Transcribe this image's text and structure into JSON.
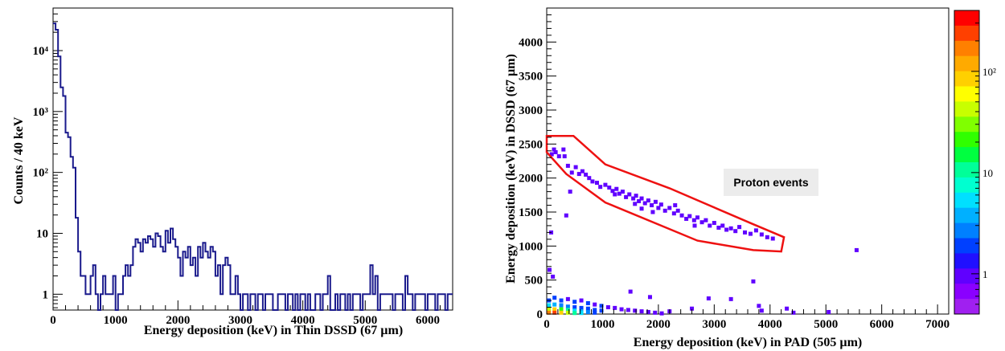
{
  "chart_data": [
    {
      "type": "histogram",
      "y_scale": "log",
      "xlabel": "Energy deposition (keV) in Thin DSSD (67  µm)",
      "ylabel": "Counts / 40 keV",
      "xlim": [
        0,
        6400
      ],
      "ylim": [
        0.55,
        50000
      ],
      "bin_width": 40,
      "x_ticks": [
        0,
        1000,
        2000,
        3000,
        4000,
        5000,
        6000
      ],
      "x_tick_labels": [
        "0",
        "1000",
        "2000",
        "3000",
        "4000",
        "5000",
        "6000"
      ],
      "y_ticks": [
        1,
        10,
        100,
        1000,
        10000
      ],
      "y_tick_labels": [
        "1",
        "10",
        "10²",
        "10³",
        "10⁴"
      ],
      "grid": false,
      "line_color": "#1a1a8c",
      "bins": [
        [
          0,
          28000
        ],
        [
          40,
          22000
        ],
        [
          80,
          8000
        ],
        [
          120,
          2500
        ],
        [
          160,
          1800
        ],
        [
          200,
          450
        ],
        [
          240,
          380
        ],
        [
          280,
          180
        ],
        [
          320,
          120
        ],
        [
          360,
          18
        ],
        [
          400,
          5
        ],
        [
          440,
          2
        ],
        [
          480,
          2
        ],
        [
          520,
          1
        ],
        [
          560,
          1
        ],
        [
          600,
          2
        ],
        [
          640,
          3
        ],
        [
          680,
          1
        ],
        [
          720,
          0
        ],
        [
          760,
          1
        ],
        [
          800,
          2
        ],
        [
          840,
          1
        ],
        [
          880,
          1
        ],
        [
          920,
          1
        ],
        [
          960,
          2
        ],
        [
          1000,
          0
        ],
        [
          1040,
          1
        ],
        [
          1080,
          1
        ],
        [
          1120,
          2
        ],
        [
          1160,
          3
        ],
        [
          1200,
          2
        ],
        [
          1240,
          3
        ],
        [
          1280,
          6
        ],
        [
          1320,
          8
        ],
        [
          1360,
          7
        ],
        [
          1400,
          5
        ],
        [
          1440,
          8
        ],
        [
          1480,
          7
        ],
        [
          1520,
          9
        ],
        [
          1560,
          8
        ],
        [
          1600,
          6
        ],
        [
          1640,
          10
        ],
        [
          1680,
          9
        ],
        [
          1720,
          6
        ],
        [
          1760,
          5
        ],
        [
          1800,
          11
        ],
        [
          1840,
          7
        ],
        [
          1880,
          12
        ],
        [
          1920,
          8
        ],
        [
          1960,
          6
        ],
        [
          2000,
          4
        ],
        [
          2040,
          2
        ],
        [
          2080,
          5
        ],
        [
          2120,
          4
        ],
        [
          2160,
          6
        ],
        [
          2200,
          3
        ],
        [
          2240,
          4
        ],
        [
          2280,
          2
        ],
        [
          2320,
          6
        ],
        [
          2360,
          4
        ],
        [
          2400,
          7
        ],
        [
          2440,
          5
        ],
        [
          2480,
          4
        ],
        [
          2520,
          6
        ],
        [
          2560,
          5
        ],
        [
          2600,
          2
        ],
        [
          2640,
          3
        ],
        [
          2680,
          1
        ],
        [
          2720,
          3
        ],
        [
          2760,
          4
        ],
        [
          2800,
          3
        ],
        [
          2840,
          1
        ],
        [
          2880,
          1
        ],
        [
          2920,
          2
        ],
        [
          2960,
          1
        ],
        [
          3000,
          0
        ],
        [
          3040,
          1
        ],
        [
          3080,
          1
        ],
        [
          3120,
          0
        ],
        [
          3160,
          1
        ],
        [
          3200,
          1
        ],
        [
          3240,
          0
        ],
        [
          3280,
          1
        ],
        [
          3320,
          1
        ],
        [
          3360,
          0
        ],
        [
          3400,
          1
        ],
        [
          3440,
          1
        ],
        [
          3480,
          1
        ],
        [
          3520,
          0
        ],
        [
          3560,
          0
        ],
        [
          3600,
          1
        ],
        [
          3640,
          1
        ],
        [
          3680,
          1
        ],
        [
          3720,
          0
        ],
        [
          3760,
          1
        ],
        [
          3800,
          1
        ],
        [
          3840,
          0
        ],
        [
          3880,
          1
        ],
        [
          3920,
          0
        ],
        [
          3960,
          1
        ],
        [
          4000,
          1
        ],
        [
          4040,
          0
        ],
        [
          4080,
          1
        ],
        [
          4120,
          0
        ],
        [
          4160,
          0
        ],
        [
          4200,
          1
        ],
        [
          4240,
          1
        ],
        [
          4280,
          0
        ],
        [
          4320,
          1
        ],
        [
          4360,
          1
        ],
        [
          4400,
          2
        ],
        [
          4440,
          0
        ],
        [
          4480,
          0
        ],
        [
          4520,
          1
        ],
        [
          4560,
          0
        ],
        [
          4600,
          1
        ],
        [
          4640,
          1
        ],
        [
          4680,
          0
        ],
        [
          4720,
          1
        ],
        [
          4760,
          0
        ],
        [
          4800,
          1
        ],
        [
          4840,
          1
        ],
        [
          4880,
          1
        ],
        [
          4920,
          0
        ],
        [
          4960,
          1
        ],
        [
          5000,
          1
        ],
        [
          5040,
          1
        ],
        [
          5080,
          3
        ],
        [
          5120,
          1
        ],
        [
          5160,
          2
        ],
        [
          5200,
          0
        ],
        [
          5240,
          1
        ],
        [
          5280,
          1
        ],
        [
          5320,
          1
        ],
        [
          5360,
          1
        ],
        [
          5400,
          1
        ],
        [
          5440,
          0
        ],
        [
          5480,
          1
        ],
        [
          5520,
          1
        ],
        [
          5560,
          1
        ],
        [
          5600,
          0
        ],
        [
          5640,
          2
        ],
        [
          5680,
          1
        ],
        [
          5720,
          1
        ],
        [
          5760,
          0
        ],
        [
          5800,
          1
        ],
        [
          5840,
          1
        ],
        [
          5880,
          1
        ],
        [
          5920,
          1
        ],
        [
          5960,
          0
        ],
        [
          6000,
          1
        ],
        [
          6040,
          1
        ],
        [
          6080,
          1
        ],
        [
          6120,
          0
        ],
        [
          6160,
          1
        ],
        [
          6200,
          1
        ],
        [
          6240,
          1
        ],
        [
          6280,
          0
        ],
        [
          6320,
          1
        ],
        [
          6360,
          1
        ]
      ]
    },
    {
      "type": "heatmap",
      "xlabel": "Energy deposition (keV) in PAD (505  µm)",
      "ylabel": "Energy deposition (keV) in DSSD (67  µm)",
      "xlim": [
        0,
        7200
      ],
      "ylim": [
        0,
        4500
      ],
      "x_ticks": [
        0,
        1000,
        2000,
        3000,
        4000,
        5000,
        6000,
        7000
      ],
      "x_tick_labels": [
        "0",
        "1000",
        "2000",
        "3000",
        "4000",
        "5000",
        "6000",
        "7000"
      ],
      "y_ticks": [
        0,
        500,
        1000,
        1500,
        2000,
        2500,
        3000,
        3500,
        4000
      ],
      "y_tick_labels": [
        "0",
        "500",
        "1000",
        "1500",
        "2000",
        "2500",
        "3000",
        "3500",
        "4000"
      ],
      "colorbar": {
        "scale": "log",
        "range": [
          0.4,
          400
        ],
        "tick_values": [
          1,
          10,
          100
        ],
        "tick_labels": [
          "1",
          "10",
          "10²"
        ],
        "colors": [
          "#ff0000",
          "#ff4000",
          "#ff8000",
          "#ffaa00",
          "#ffd000",
          "#ffff00",
          "#c8ff00",
          "#80ff00",
          "#30ff00",
          "#00ff40",
          "#00ff99",
          "#00ffd0",
          "#00e0ff",
          "#00b0ff",
          "#0080ff",
          "#0040ff",
          "#2010ff",
          "#6000ff",
          "#8a00ff",
          "#a020f0"
        ]
      },
      "annotation": "Proton events",
      "gate_color": "#ee1111",
      "gate_polygon": [
        [
          0,
          2620
        ],
        [
          480,
          2620
        ],
        [
          1050,
          2200
        ],
        [
          2200,
          1850
        ],
        [
          3700,
          1320
        ],
        [
          4250,
          1130
        ],
        [
          4200,
          920
        ],
        [
          3700,
          940
        ],
        [
          2700,
          1080
        ],
        [
          1050,
          1640
        ],
        [
          350,
          2060
        ],
        [
          0,
          2380
        ]
      ],
      "points": [
        [
          90,
          2350,
          1
        ],
        [
          160,
          2380,
          1
        ],
        [
          220,
          2320,
          1
        ],
        [
          300,
          2420,
          1
        ],
        [
          320,
          2320,
          1
        ],
        [
          130,
          2420,
          1
        ],
        [
          80,
          1200,
          1
        ],
        [
          380,
          2180,
          1
        ],
        [
          450,
          2080,
          1
        ],
        [
          520,
          2160,
          1
        ],
        [
          580,
          2060,
          1
        ],
        [
          640,
          2100,
          1
        ],
        [
          700,
          2050,
          1
        ],
        [
          760,
          2000,
          1
        ],
        [
          820,
          1950,
          1
        ],
        [
          900,
          1930,
          1
        ],
        [
          960,
          1870,
          1
        ],
        [
          1050,
          1900,
          1
        ],
        [
          1120,
          1860,
          1
        ],
        [
          1180,
          1810,
          1
        ],
        [
          1250,
          1840,
          1
        ],
        [
          1300,
          1770,
          1
        ],
        [
          1360,
          1800,
          1
        ],
        [
          1420,
          1720,
          1
        ],
        [
          1480,
          1760,
          1
        ],
        [
          1550,
          1700,
          1
        ],
        [
          1600,
          1740,
          1
        ],
        [
          1650,
          1660,
          1
        ],
        [
          1700,
          1700,
          1
        ],
        [
          1760,
          1630,
          1
        ],
        [
          1820,
          1670,
          1
        ],
        [
          1880,
          1600,
          1
        ],
        [
          1950,
          1650,
          1
        ],
        [
          2000,
          1560,
          1
        ],
        [
          2050,
          1610,
          1
        ],
        [
          2120,
          1520,
          1
        ],
        [
          2200,
          1560,
          1
        ],
        [
          2280,
          1480,
          1
        ],
        [
          2350,
          1520,
          1
        ],
        [
          2420,
          1450,
          1
        ],
        [
          2500,
          1400,
          1
        ],
        [
          2560,
          1440,
          1
        ],
        [
          2640,
          1380,
          1
        ],
        [
          2700,
          1420,
          1
        ],
        [
          2780,
          1350,
          1
        ],
        [
          2850,
          1380,
          1
        ],
        [
          2920,
          1300,
          1
        ],
        [
          3000,
          1340,
          1
        ],
        [
          3080,
          1270,
          1
        ],
        [
          3150,
          1300,
          1
        ],
        [
          3220,
          1240,
          1
        ],
        [
          3300,
          1260,
          1
        ],
        [
          3380,
          1220,
          1
        ],
        [
          3450,
          1280,
          1
        ],
        [
          3550,
          1200,
          1
        ],
        [
          3650,
          1180,
          1
        ],
        [
          3750,
          1230,
          1
        ],
        [
          3850,
          1170,
          1
        ],
        [
          3950,
          1130,
          1
        ],
        [
          4050,
          1110,
          1
        ],
        [
          1220,
          1760,
          1
        ],
        [
          1580,
          1620,
          1
        ],
        [
          1900,
          1500,
          1
        ],
        [
          2300,
          1600,
          1
        ],
        [
          2650,
          1300,
          1
        ],
        [
          1700,
          1550,
          1
        ],
        [
          420,
          1800,
          1
        ],
        [
          350,
          1450,
          1
        ],
        [
          5550,
          940,
          1
        ],
        [
          3700,
          480,
          1
        ],
        [
          50,
          650,
          1
        ],
        [
          110,
          550,
          1
        ],
        [
          1500,
          330,
          1
        ],
        [
          1850,
          250,
          1
        ],
        [
          2900,
          230,
          1
        ],
        [
          3300,
          220,
          1
        ],
        [
          3800,
          120,
          1
        ],
        [
          4300,
          80,
          1
        ],
        [
          4420,
          20,
          1
        ],
        [
          5050,
          30,
          1
        ],
        [
          2600,
          80,
          1
        ],
        [
          2200,
          40,
          1
        ],
        [
          3850,
          50,
          1
        ],
        [
          40,
          200,
          2
        ],
        [
          140,
          240,
          2
        ],
        [
          260,
          200,
          2
        ],
        [
          380,
          220,
          1
        ],
        [
          500,
          180,
          2
        ],
        [
          620,
          200,
          1
        ],
        [
          740,
          160,
          2
        ],
        [
          860,
          140,
          1
        ],
        [
          980,
          120,
          2
        ],
        [
          1100,
          100,
          1
        ],
        [
          1220,
          90,
          1
        ],
        [
          1340,
          70,
          1
        ],
        [
          1460,
          60,
          1
        ],
        [
          1580,
          50,
          1
        ],
        [
          1700,
          40,
          1
        ],
        [
          1820,
          30,
          1
        ],
        [
          1940,
          20,
          1
        ],
        [
          2060,
          10,
          1
        ],
        [
          40,
          130,
          6
        ],
        [
          140,
          140,
          4
        ],
        [
          260,
          130,
          3
        ],
        [
          380,
          110,
          3
        ],
        [
          500,
          100,
          2
        ],
        [
          620,
          90,
          2
        ],
        [
          740,
          80,
          2
        ],
        [
          860,
          60,
          2
        ],
        [
          980,
          50,
          2
        ],
        [
          40,
          70,
          40
        ],
        [
          140,
          70,
          80
        ],
        [
          260,
          70,
          25
        ],
        [
          380,
          60,
          12
        ],
        [
          500,
          50,
          6
        ],
        [
          620,
          40,
          4
        ],
        [
          740,
          30,
          3
        ],
        [
          860,
          20,
          2
        ],
        [
          40,
          20,
          150
        ],
        [
          140,
          20,
          260
        ],
        [
          260,
          20,
          100
        ],
        [
          380,
          20,
          40
        ],
        [
          500,
          15,
          12
        ],
        [
          620,
          15,
          6
        ]
      ]
    }
  ]
}
